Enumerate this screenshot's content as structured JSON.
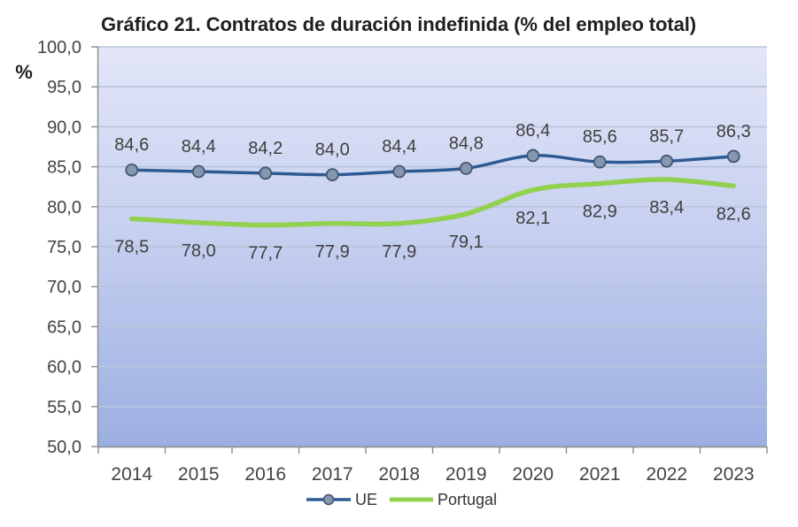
{
  "chart_data": {
    "type": "line",
    "title": "Gráfico 21. Contratos de duración indefinida (% del empleo total)",
    "ylabel": "%",
    "xlabel": "",
    "categories": [
      "2014",
      "2015",
      "2016",
      "2017",
      "2018",
      "2019",
      "2020",
      "2021",
      "2022",
      "2023"
    ],
    "y_axis": {
      "min": 50,
      "max": 100,
      "step": 5,
      "tick_labels": [
        "50,0",
        "55,0",
        "60,0",
        "65,0",
        "70,0",
        "75,0",
        "80,0",
        "85,0",
        "90,0",
        "95,0",
        "100,0"
      ]
    },
    "grid": true,
    "legend_position": "bottom",
    "smooth_lines": true,
    "series": [
      {
        "name": "UE",
        "values": [
          84.6,
          84.4,
          84.2,
          84.0,
          84.4,
          84.8,
          86.4,
          85.6,
          85.7,
          86.3
        ],
        "labels": [
          "84,6",
          "84,4",
          "84,2",
          "84,0",
          "84,4",
          "84,8",
          "86,4",
          "85,6",
          "85,7",
          "86,3"
        ],
        "label_position": "above",
        "color": "#2e5a94",
        "line_width": 3.5,
        "marker": {
          "shape": "circle",
          "fill": "#8496b0",
          "stroke": "#44576e",
          "radius": 6.5
        }
      },
      {
        "name": "Portugal",
        "values": [
          78.5,
          78.0,
          77.7,
          77.9,
          77.9,
          79.1,
          82.1,
          82.9,
          83.4,
          82.6
        ],
        "labels": [
          "78,5",
          "78,0",
          "77,7",
          "77,9",
          "77,9",
          "79,1",
          "82,1",
          "82,9",
          "83,4",
          "82,6"
        ],
        "label_position": "below",
        "color": "#92d050",
        "line_width": 5.5,
        "marker": null
      }
    ],
    "colors": {
      "plot_gradient_top": "#e3e6f8",
      "plot_gradient_mid": "#c5cfef",
      "plot_gradient_bottom": "#9cafe2",
      "gridline": "#b9c3dc",
      "axis_line": "#8c8c8c",
      "data_label": "#3f3f3f",
      "tick_label": "#444444",
      "title": "#1f1f1f"
    }
  }
}
